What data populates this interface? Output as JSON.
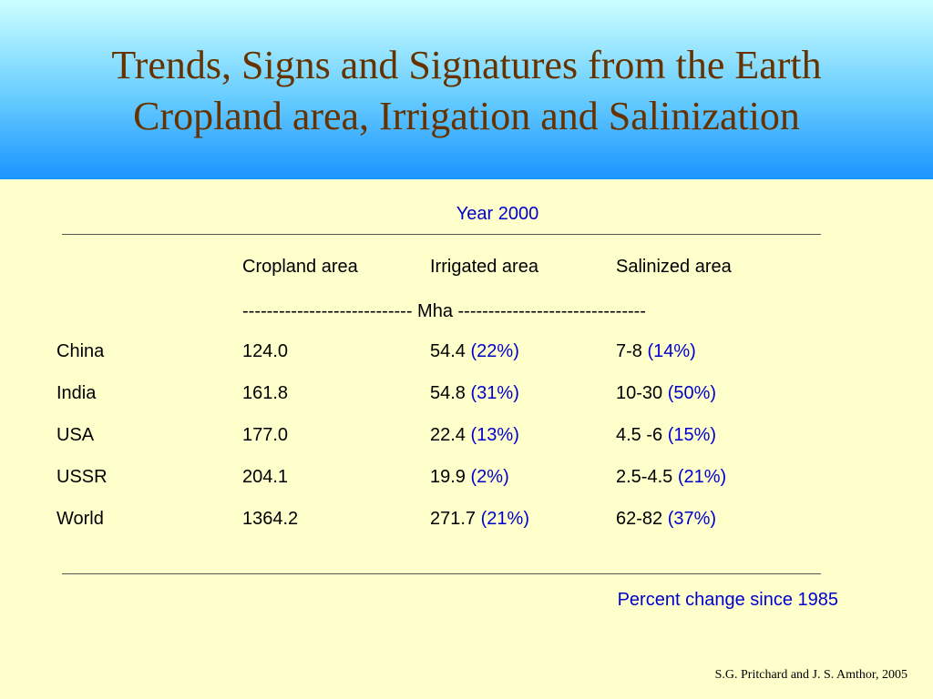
{
  "slide": {
    "title_line1": "Trends, Signs and Signatures from the Earth",
    "title_line2": "Cropland area, Irrigation and Salinization",
    "year_label": "Year 2000",
    "columns": [
      "Cropland area",
      "Irrigated area",
      "Salinized area"
    ],
    "units_row": "---------------------------- Mha -------------------------------",
    "rows": [
      {
        "country": "China",
        "cropland": "124.0",
        "irrigated": "54.4",
        "irrigated_pct": "(22%)",
        "salinized": "7-8",
        "salinized_pct": "(14%)"
      },
      {
        "country": "India",
        "cropland": "161.8",
        "irrigated": "54.8",
        "irrigated_pct": "(31%)",
        "salinized": "10-30",
        "salinized_pct": "(50%)"
      },
      {
        "country": "USA",
        "cropland": "177.0",
        "irrigated": "22.4",
        "irrigated_pct": "(13%)",
        "salinized": "4.5 -6",
        "salinized_pct": "(15%)"
      },
      {
        "country": "USSR",
        "cropland": "204.1",
        "irrigated": "19.9",
        "irrigated_pct": "(2%)",
        "salinized": "2.5-4.5",
        "salinized_pct": "(21%)"
      },
      {
        "country": "World",
        "cropland": "1364.2",
        "irrigated": "271.7",
        "irrigated_pct": "(21%)",
        "salinized": "62-82",
        "salinized_pct": "(37%)"
      }
    ],
    "footnote": "Percent change since 1985",
    "credit": "S.G. Pritchard and J. S. Amthor, 2005"
  },
  "colors": {
    "background": "#ffffcc",
    "title": "#663300",
    "accent_blue": "#0000cc",
    "header_gradient_top": "#ccffff",
    "header_gradient_bottom": "#1a94ff"
  }
}
